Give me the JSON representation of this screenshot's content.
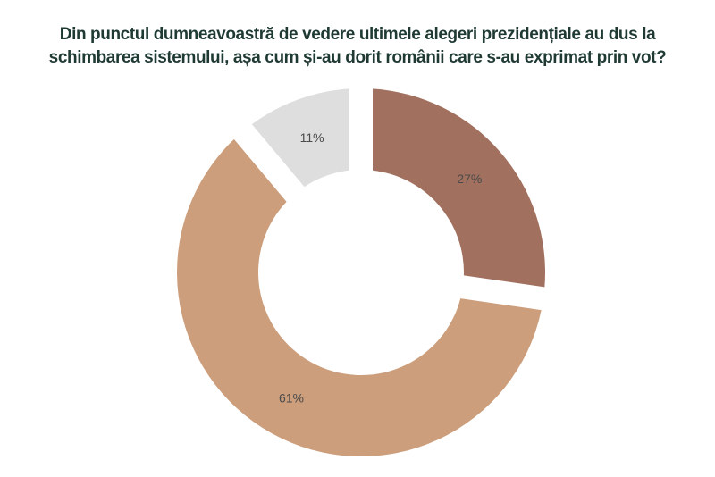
{
  "page": {
    "background": "#ffffff"
  },
  "title": {
    "line1": "Din punctul dumneavoastră de vedere ultimele alegeri prezidențiale au dus la",
    "line2": "schimbarea sistemului, așa cum și-au dorit românii care s-au exprimat prin vot?",
    "color": "#1f3a33"
  },
  "chart_data": {
    "type": "pie",
    "subtype": "donut",
    "title": "Din punctul dumneavoastră de vedere ultimele alegeri prezidențiale au dus la schimbarea sistemului, așa cum și-au dorit românii care s-au exprimat prin vot?",
    "slices": [
      {
        "label": "27%",
        "value": 27,
        "color": "#a1705e"
      },
      {
        "label": "61%",
        "value": 61,
        "color": "#cc9e7c"
      },
      {
        "label": "11%",
        "value": 11,
        "color": "#dedede"
      }
    ],
    "start_angle_deg": 0,
    "direction": "clockwise",
    "inner_radius_ratio": 0.56,
    "slice_gap_style": "white padded gaps between slices",
    "label_color": "#4b4b4b",
    "legend": "none",
    "background": "#ffffff"
  }
}
